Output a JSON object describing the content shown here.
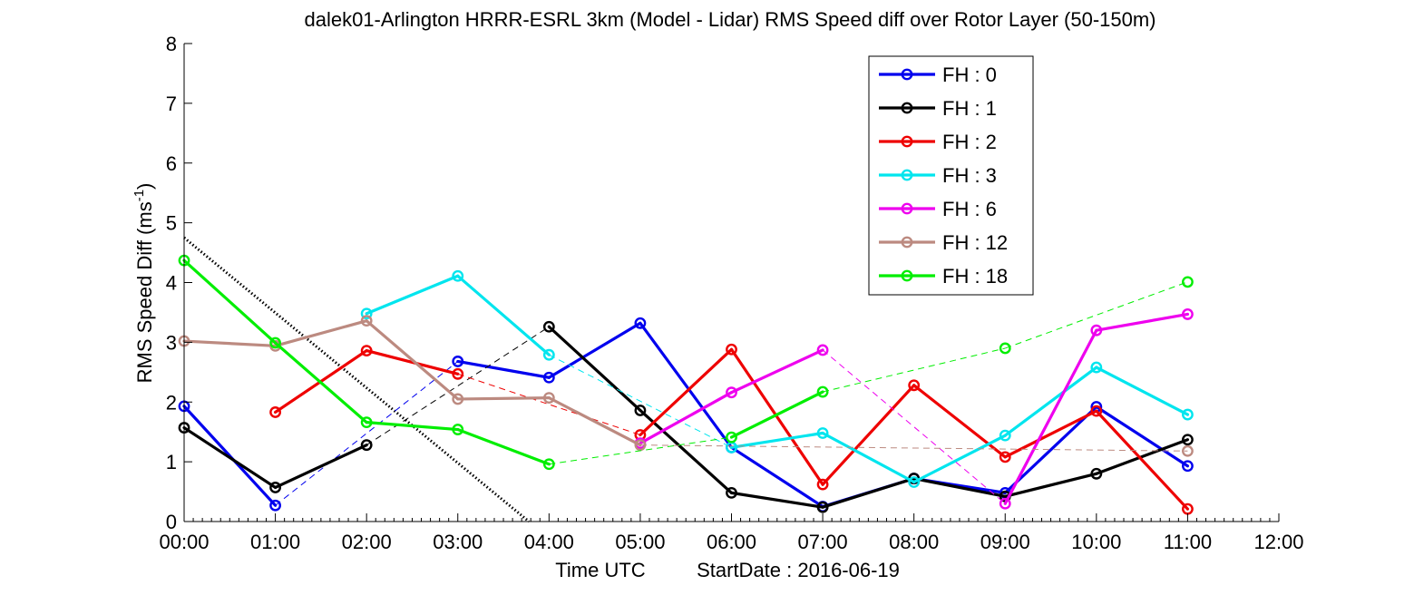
{
  "chart_data": {
    "type": "line",
    "title": "dalek01-Arlington HRRR-ESRL 3km (Model - Lidar) RMS Speed diff over Rotor Layer (50-150m)",
    "ylabel_main": "RMS Speed Diff (ms",
    "ylabel_sup": "-1",
    "ylabel_end": ")",
    "xlabel": "Time UTC",
    "start_date_label": "StartDate : 2016-06-19",
    "xlim": [
      0,
      12
    ],
    "ylim": [
      0,
      8
    ],
    "x_ticks": [
      0,
      1,
      2,
      3,
      4,
      5,
      6,
      7,
      8,
      9,
      10,
      11,
      12
    ],
    "x_tick_labels": [
      "00:00",
      "01:00",
      "02:00",
      "03:00",
      "04:00",
      "05:00",
      "06:00",
      "07:00",
      "08:00",
      "09:00",
      "10:00",
      "11:00",
      "12:00"
    ],
    "y_ticks": [
      0,
      1,
      2,
      3,
      4,
      5,
      6,
      7,
      8
    ],
    "y_tick_labels": [
      "0",
      "1",
      "2",
      "3",
      "4",
      "5",
      "6",
      "7",
      "8"
    ],
    "grid": false,
    "legend_position": "top-right",
    "series": [
      {
        "name": "FH : 0",
        "color": "#0000ee",
        "points": [
          [
            0,
            1.93
          ],
          [
            1,
            0.27
          ],
          [
            3,
            2.68
          ],
          [
            4,
            2.41
          ],
          [
            5,
            3.32
          ],
          [
            6,
            1.24
          ],
          [
            7,
            0.25
          ],
          [
            8,
            0.72
          ],
          [
            9,
            0.48
          ],
          [
            10,
            1.92
          ],
          [
            11,
            0.93
          ]
        ],
        "segments_solid": [
          [
            0,
            1
          ],
          [
            2,
            3
          ],
          [
            3,
            4
          ],
          [
            4,
            5
          ],
          [
            5,
            6
          ],
          [
            6,
            7
          ],
          [
            7,
            8
          ],
          [
            8,
            9
          ],
          [
            9,
            10
          ]
        ],
        "segments_dashed": [
          [
            1,
            2
          ]
        ]
      },
      {
        "name": "FH : 1",
        "color": "#000000",
        "points": [
          [
            0,
            1.57
          ],
          [
            1,
            0.57
          ],
          [
            2,
            1.28
          ],
          [
            4,
            3.26
          ],
          [
            5,
            1.86
          ],
          [
            6,
            0.48
          ],
          [
            7,
            0.24
          ],
          [
            8,
            0.72
          ],
          [
            9,
            0.42
          ],
          [
            10,
            0.8
          ],
          [
            11,
            1.37
          ]
        ],
        "segments_solid": [
          [
            0,
            1
          ],
          [
            1,
            2
          ],
          [
            3,
            4
          ],
          [
            4,
            5
          ],
          [
            5,
            6
          ],
          [
            6,
            7
          ],
          [
            7,
            8
          ],
          [
            8,
            9
          ],
          [
            9,
            10
          ]
        ],
        "segments_dashed": [
          [
            2,
            3
          ]
        ]
      },
      {
        "name": "FH : 2",
        "color": "#ee0000",
        "points": [
          [
            1,
            1.83
          ],
          [
            2,
            2.86
          ],
          [
            3,
            2.47
          ],
          [
            5,
            1.45
          ],
          [
            6,
            2.88
          ],
          [
            7,
            0.62
          ],
          [
            8,
            2.28
          ],
          [
            9,
            1.08
          ],
          [
            10,
            1.85
          ],
          [
            11,
            0.21
          ]
        ],
        "segments_solid": [
          [
            0,
            1
          ],
          [
            1,
            2
          ],
          [
            3,
            4
          ],
          [
            4,
            5
          ],
          [
            5,
            6
          ],
          [
            6,
            7
          ],
          [
            7,
            8
          ],
          [
            8,
            9
          ]
        ],
        "segments_dashed": [
          [
            2,
            3
          ]
        ]
      },
      {
        "name": "FH : 3",
        "color": "#00e5ee",
        "points": [
          [
            2,
            3.48
          ],
          [
            3,
            4.11
          ],
          [
            4,
            2.79
          ],
          [
            6,
            1.24
          ],
          [
            7,
            1.48
          ],
          [
            8,
            0.66
          ],
          [
            9,
            1.44
          ],
          [
            10,
            2.58
          ],
          [
            11,
            1.79
          ]
        ],
        "segments_solid": [
          [
            0,
            1
          ],
          [
            1,
            2
          ],
          [
            3,
            4
          ],
          [
            4,
            5
          ],
          [
            5,
            6
          ],
          [
            6,
            7
          ],
          [
            7,
            8
          ]
        ],
        "segments_dashed": [
          [
            2,
            3
          ]
        ]
      },
      {
        "name": "FH : 6",
        "color": "#ee00ee",
        "points": [
          [
            5,
            1.31
          ],
          [
            6,
            2.16
          ],
          [
            7,
            2.87
          ],
          [
            9,
            0.3
          ],
          [
            10,
            3.2
          ],
          [
            11,
            3.47
          ]
        ],
        "segments_solid": [
          [
            0,
            1
          ],
          [
            1,
            2
          ],
          [
            3,
            4
          ],
          [
            4,
            5
          ]
        ],
        "segments_dashed": [
          [
            2,
            3
          ]
        ]
      },
      {
        "name": "FH : 12",
        "color": "#bc8a80",
        "points": [
          [
            0,
            3.02
          ],
          [
            1,
            2.94
          ],
          [
            2,
            3.36
          ],
          [
            3,
            2.05
          ],
          [
            4,
            2.07
          ],
          [
            5,
            1.28
          ],
          [
            11,
            1.18
          ]
        ],
        "segments_solid": [
          [
            0,
            1
          ],
          [
            1,
            2
          ],
          [
            2,
            3
          ],
          [
            3,
            4
          ],
          [
            4,
            5
          ]
        ],
        "segments_dashed": [
          [
            5,
            6
          ]
        ]
      },
      {
        "name": "FH : 18",
        "color": "#00ee00",
        "points": [
          [
            0,
            4.37
          ],
          [
            1,
            2.99
          ],
          [
            2,
            1.66
          ],
          [
            3,
            1.54
          ],
          [
            4,
            0.96
          ],
          [
            6,
            1.41
          ],
          [
            7,
            2.17
          ],
          [
            9,
            2.9
          ],
          [
            11,
            4.01
          ]
        ],
        "segments_solid": [
          [
            0,
            1
          ],
          [
            1,
            2
          ],
          [
            2,
            3
          ],
          [
            3,
            4
          ],
          [
            5,
            6
          ]
        ],
        "segments_dashed": [
          [
            4,
            5
          ],
          [
            6,
            7
          ],
          [
            7,
            8
          ]
        ]
      }
    ],
    "reference_line": {
      "style": "dotted",
      "color": "#000000",
      "points": [
        [
          0,
          4.75
        ],
        [
          3.78,
          0
        ]
      ]
    }
  }
}
